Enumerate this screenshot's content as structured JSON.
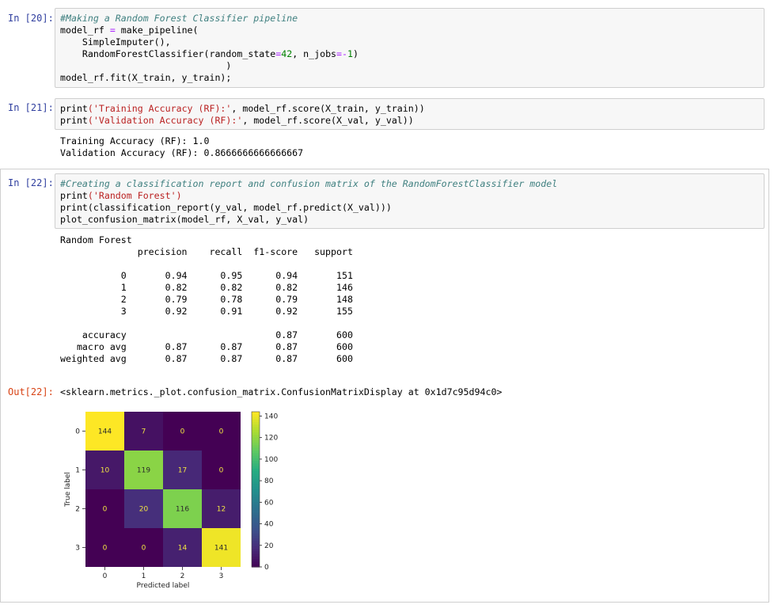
{
  "cells": [
    {
      "prompt": "In [20]:",
      "lines": [
        [
          {
            "t": "#Making a Random Forest Classifier pipeline",
            "c": "comment"
          }
        ],
        [
          {
            "t": "model_rf "
          },
          {
            "t": "=",
            "c": "op"
          },
          {
            "t": " make_pipeline("
          }
        ],
        [
          {
            "t": "    SimpleImputer(),"
          }
        ],
        [
          {
            "t": "    RandomForestClassifier(random_state"
          },
          {
            "t": "=",
            "c": "op"
          },
          {
            "t": "42",
            "c": "num"
          },
          {
            "t": ", n_jobs"
          },
          {
            "t": "=-",
            "c": "op"
          },
          {
            "t": "1",
            "c": "num"
          },
          {
            "t": ")"
          }
        ],
        [
          {
            "t": "                              )"
          }
        ],
        [
          {
            "t": "model_rf.fit(X_train, y_train);"
          }
        ]
      ]
    },
    {
      "prompt": "In [21]:",
      "lines": [
        [
          {
            "t": "print"
          },
          {
            "t": "('Training Accuracy (RF):'",
            "c": "str"
          },
          {
            "t": ", model_rf.score(X_train, y_train))"
          }
        ],
        [
          {
            "t": "print"
          },
          {
            "t": "('Validation Accuracy (RF):'",
            "c": "str"
          },
          {
            "t": ", model_rf.score(X_val, y_val))"
          }
        ]
      ],
      "output": "Training Accuracy (RF): 1.0\nValidation Accuracy (RF): 0.8666666666666667"
    },
    {
      "prompt": "In [22]:",
      "lines": [
        [
          {
            "t": "#Creating a classification report and confusion matrix of the RandomForestClassifier model",
            "c": "comment"
          }
        ],
        [
          {
            "t": "print"
          },
          {
            "t": "('Random Forest')",
            "c": "str"
          }
        ],
        [
          {
            "t": "print(classification_report(y_val, model_rf.predict(X_val)))"
          }
        ],
        [
          {
            "t": "plot_confusion_matrix(model_rf, X_val, y_val)"
          }
        ]
      ],
      "output": "Random Forest\n              precision    recall  f1-score   support\n\n           0       0.94      0.95      0.94       151\n           1       0.82      0.82      0.82       146\n           2       0.79      0.78      0.79       148\n           3       0.92      0.91      0.92       155\n\n    accuracy                           0.87       600\n   macro avg       0.87      0.87      0.87       600\nweighted avg       0.87      0.87      0.87       600",
      "out_prompt": "Out[22]:",
      "out_repr": "<sklearn.metrics._plot.confusion_matrix.ConfusionMatrixDisplay at 0x1d7c95d94c0>"
    }
  ],
  "chart_data": {
    "type": "heatmap",
    "xlabel": "Predicted label",
    "ylabel": "True label",
    "x_ticks": [
      "0",
      "1",
      "2",
      "3"
    ],
    "y_ticks": [
      "0",
      "1",
      "2",
      "3"
    ],
    "matrix": [
      [
        144,
        7,
        0,
        0
      ],
      [
        10,
        119,
        17,
        0
      ],
      [
        0,
        20,
        116,
        12
      ],
      [
        0,
        0,
        14,
        141
      ]
    ],
    "colorbar_ticks": [
      "0",
      "20",
      "40",
      "60",
      "80",
      "100",
      "120",
      "140"
    ],
    "colorbar_range": [
      0,
      144
    ],
    "colormap": "viridis"
  }
}
